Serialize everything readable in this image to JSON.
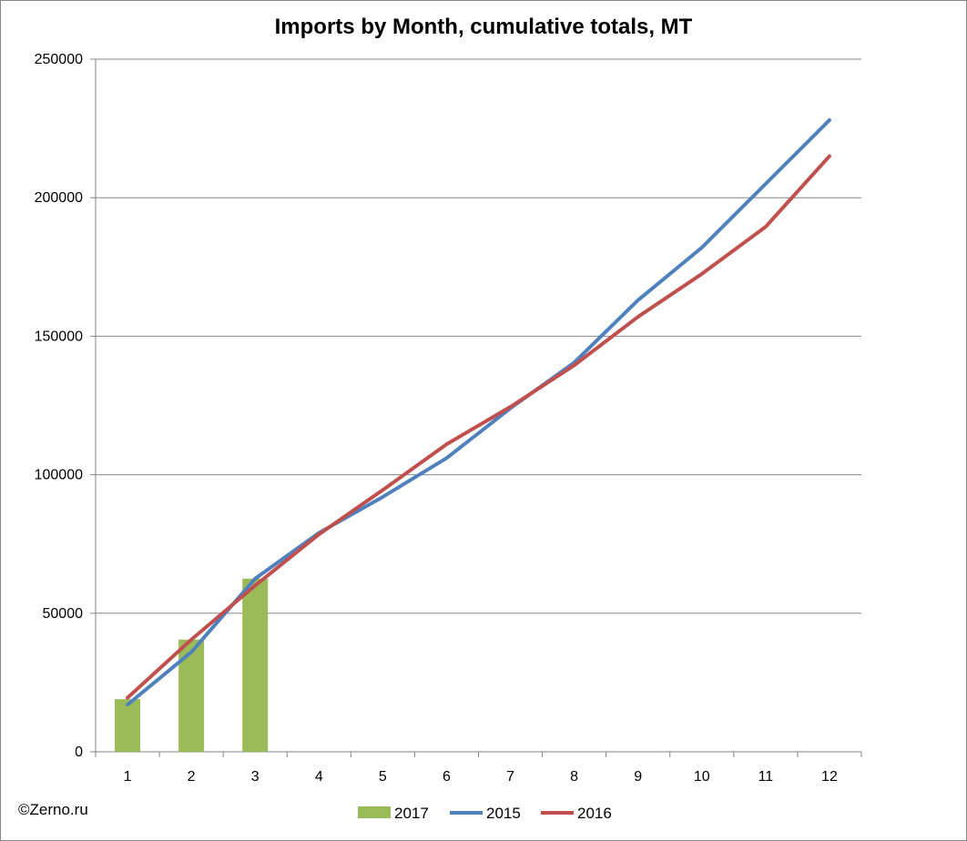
{
  "chart_data": {
    "type": "bar",
    "title": "Imports by Month, cumulative totals, MT",
    "xlabel": "",
    "ylabel": "",
    "categories": [
      "1",
      "2",
      "3",
      "4",
      "5",
      "6",
      "7",
      "8",
      "9",
      "10",
      "11",
      "12"
    ],
    "ylim": [
      0,
      250000
    ],
    "yticks": [
      "0",
      "50000",
      "100000",
      "150000",
      "200000",
      "250000"
    ],
    "grid": true,
    "legend_position": "bottom",
    "series": [
      {
        "name": "2017",
        "kind": "bar",
        "color": "#9BBB59",
        "values": [
          19000,
          40500,
          62500,
          null,
          null,
          null,
          null,
          null,
          null,
          null,
          null,
          null
        ]
      },
      {
        "name": "2015",
        "kind": "line",
        "color": "#4F81BD",
        "values": [
          17000,
          36000,
          62500,
          79000,
          92000,
          106000,
          124000,
          140500,
          163000,
          182000,
          205000,
          228000
        ]
      },
      {
        "name": "2016",
        "kind": "line",
        "color": "#C0504D",
        "values": [
          19500,
          40500,
          60000,
          78500,
          94500,
          111000,
          124500,
          139500,
          157000,
          172500,
          189500,
          215000
        ]
      }
    ]
  },
  "watermark": "©Zerno.ru"
}
